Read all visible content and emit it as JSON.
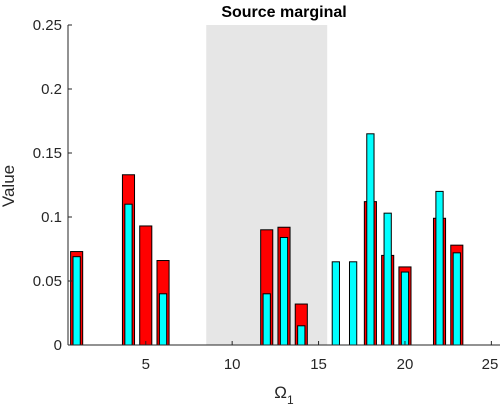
{
  "chart_data": {
    "type": "bar",
    "title": "Source marginal",
    "xlabel": "Ω",
    "xlabel_subscript": "1",
    "ylabel": "Value",
    "xlim": [
      0.5,
      25.5
    ],
    "ylim": [
      0,
      0.25
    ],
    "xticks": [
      5,
      10,
      15,
      20,
      25
    ],
    "yticks": [
      0,
      0.05,
      0.1,
      0.15,
      0.2,
      0.25
    ],
    "ytick_labels": [
      "0",
      "0.05",
      "0.1",
      "0.15",
      "0.2",
      "0.25"
    ],
    "grid": false,
    "legend": "none",
    "shaded_region": {
      "x_start": 8.5,
      "x_end": 15.5,
      "color": "#e6e6e6"
    },
    "series": [
      {
        "color": "#ff0000",
        "bar_width": 0.7,
        "x": [
          1,
          4,
          5,
          6,
          12,
          13,
          14,
          18,
          19,
          20,
          22,
          23
        ],
        "values": [
          0.073,
          0.133,
          0.093,
          0.066,
          0.09,
          0.092,
          0.032,
          0.112,
          0.07,
          0.061,
          0.099,
          0.078
        ]
      },
      {
        "color": "#00ffff",
        "bar_width": 0.42,
        "x": [
          1,
          4,
          5,
          6,
          12,
          13,
          14,
          16,
          17,
          18,
          19,
          20,
          22,
          23
        ],
        "values": [
          0.069,
          0.11,
          0.0,
          0.04,
          0.04,
          0.084,
          0.015,
          0.065,
          0.065,
          0.165,
          0.103,
          0.057,
          0.12,
          0.072
        ]
      }
    ]
  }
}
